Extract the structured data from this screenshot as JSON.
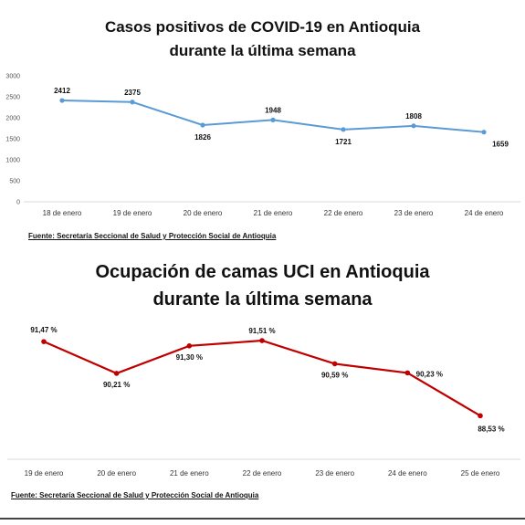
{
  "colors": {
    "chart1_line": "#5b9bd5",
    "chart2_line": "#c00000"
  },
  "chart_data": [
    {
      "type": "line",
      "title_line1": "Casos positivos de COVID-19 en Antioquia",
      "title_line2": "durante la última semana",
      "categories": [
        "18 de enero",
        "19 de enero",
        "20 de enero",
        "21 de enero",
        "22 de enero",
        "23 de enero",
        "24 de enero"
      ],
      "values": [
        2412,
        2375,
        1826,
        1948,
        1721,
        1808,
        1659
      ],
      "data_labels": [
        "2412",
        "2375",
        "1826",
        "1948",
        "1721",
        "1808",
        "1659"
      ],
      "yticks": [
        "0",
        "500",
        "1000",
        "1500",
        "2000",
        "2500",
        "3000"
      ],
      "ylim": [
        0,
        3000
      ],
      "grid": false,
      "legend": "none",
      "source": "Fuente: Secretaría Seccional de Salud y Protección Social de Antioquia"
    },
    {
      "type": "line",
      "title_line1": "Ocupación de camas UCI en Antioquia",
      "title_line2": "durante la última semana",
      "categories": [
        "19 de enero",
        "20 de enero",
        "21 de enero",
        "22 de enero",
        "23 de enero",
        "24 de enero",
        "25 de enero"
      ],
      "values": [
        91.47,
        90.21,
        91.3,
        91.51,
        90.59,
        90.23,
        88.53
      ],
      "data_labels": [
        "91,47 %",
        "90,21 %",
        "91,30 %",
        "91,51 %",
        "90,59 %",
        "90,23 %",
        "88,53 %"
      ],
      "ylim": [
        88.0,
        91.8
      ],
      "grid": false,
      "legend": "none",
      "source": "Fuente: Secretaría Seccional de Salud y Protección Social de Antioquia"
    }
  ]
}
